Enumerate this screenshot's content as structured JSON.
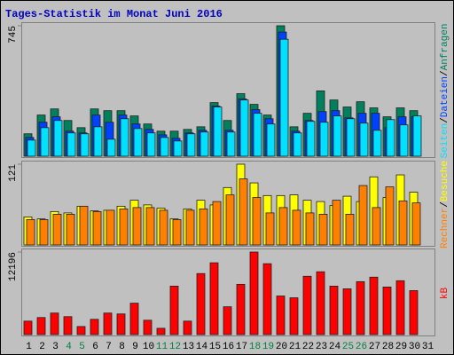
{
  "title": "Tages-Statistik im Monat Juni 2016",
  "separator": "/",
  "chart_data": [
    {
      "type": "bar",
      "ylim": [
        0,
        745
      ],
      "yticks": [
        745
      ],
      "series": [
        {
          "name": "Anfragen",
          "color": "#00805c",
          "values": [
            128,
            235,
            270,
            204,
            163,
            270,
            260,
            260,
            230,
            184,
            143,
            143,
            153,
            168,
            306,
            204,
            357,
            296,
            235,
            745,
            168,
            245,
            373,
            321,
            281,
            311,
            276,
            225,
            276,
            260,
            null
          ]
        },
        {
          "name": "Dateien",
          "color": "#0040ff",
          "values": [
            107,
            194,
            225,
            143,
            133,
            235,
            194,
            235,
            184,
            153,
            122,
            102,
            133,
            148,
            286,
            148,
            327,
            266,
            214,
            709,
            143,
            204,
            255,
            260,
            219,
            245,
            245,
            163,
            225,
            225,
            null
          ]
        },
        {
          "name": "Seiten",
          "color": "#00e0ff",
          "values": [
            92,
            163,
            204,
            133,
            128,
            168,
            97,
            214,
            158,
            133,
            107,
            87,
            128,
            138,
            281,
            138,
            321,
            245,
            184,
            668,
            133,
            199,
            194,
            230,
            214,
            189,
            148,
            209,
            179,
            230,
            null
          ]
        }
      ]
    },
    {
      "type": "bar",
      "ylim": [
        0,
        121
      ],
      "yticks": [
        121
      ],
      "series": [
        {
          "name": "Besuche",
          "color": "#ffff00",
          "values": [
            42,
            39,
            50,
            48,
            58,
            51,
            52,
            58,
            67,
            60,
            55,
            39,
            54,
            67,
            60,
            86,
            121,
            93,
            74,
            74,
            75,
            67,
            65,
            59,
            73,
            65,
            102,
            71,
            105,
            79,
            null
          ]
        },
        {
          "name": "Rechner",
          "color": "#ff8000",
          "values": [
            38,
            38,
            46,
            46,
            58,
            50,
            52,
            54,
            56,
            56,
            52,
            38,
            52,
            54,
            65,
            75,
            99,
            71,
            48,
            56,
            52,
            48,
            46,
            67,
            46,
            89,
            56,
            87,
            66,
            63,
            null
          ]
        }
      ]
    },
    {
      "type": "bar",
      "ylim": [
        0,
        12196
      ],
      "yticks": [
        12196
      ],
      "categories": [
        "1",
        "2",
        "3",
        "4",
        "5",
        "6",
        "7",
        "8",
        "9",
        "10",
        "11",
        "12",
        "13",
        "14",
        "15",
        "16",
        "17",
        "18",
        "19",
        "20",
        "21",
        "22",
        "23",
        "24",
        "25",
        "26",
        "27",
        "28",
        "29",
        "30",
        "31"
      ],
      "category_colors": [
        "#000000",
        "#000000",
        "#000000",
        "#008040",
        "#008040",
        "#000000",
        "#000000",
        "#000000",
        "#000000",
        "#000000",
        "#008040",
        "#008040",
        "#000000",
        "#000000",
        "#000000",
        "#000000",
        "#000000",
        "#008040",
        "#008040",
        "#000000",
        "#000000",
        "#000000",
        "#000000",
        "#000000",
        "#008040",
        "#008040",
        "#000000",
        "#000000",
        "#000000",
        "#000000",
        "#000000"
      ],
      "series": [
        {
          "name": "kB",
          "color": "#ff0000",
          "values": [
            1989,
            2519,
            3182,
            2652,
            1193,
            2254,
            3182,
            3050,
            4641,
            2122,
            928,
            7160,
            1989,
            9017,
            10608,
            4110,
            7425,
            12196,
            10475,
            5702,
            5437,
            8619,
            9282,
            7160,
            6763,
            7823,
            8487,
            7028,
            7956,
            6497,
            null
          ]
        }
      ]
    }
  ]
}
